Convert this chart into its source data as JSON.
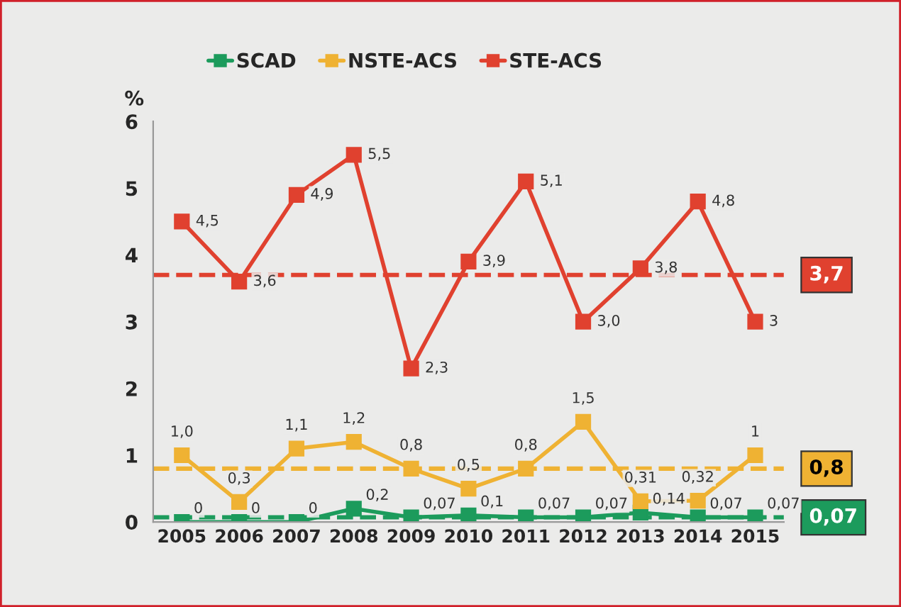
{
  "chart_data": {
    "type": "line",
    "ylabel": "%",
    "categories": [
      "2005",
      "2006",
      "2007",
      "2008",
      "2009",
      "2010",
      "2011",
      "2012",
      "2013",
      "2014",
      "2015"
    ],
    "series": [
      {
        "name": "SCAD",
        "color": "#1c9b5c",
        "values": [
          0,
          0,
          0,
          0.2,
          0.07,
          0.1,
          0.07,
          0.07,
          0.14,
          0.07,
          0.07
        ],
        "value_labels": [
          "0",
          "0",
          "0",
          "0,2",
          "0,07",
          "0,1",
          "0,07",
          "0,07",
          "0,14",
          "0,07",
          "0,07"
        ]
      },
      {
        "name": "NSTE-ACS",
        "color": "#efb233",
        "values": [
          1.0,
          0.3,
          1.1,
          1.2,
          0.8,
          0.5,
          0.8,
          1.5,
          0.31,
          0.32,
          1
        ],
        "value_labels": [
          "1,0",
          "0,3",
          "1,1",
          "1,2",
          "0,8",
          "0,5",
          "0,8",
          "1,5",
          "0,31",
          "0,32",
          "1"
        ]
      },
      {
        "name": "STE-ACS",
        "color": "#e0412f",
        "values": [
          4.5,
          3.6,
          4.9,
          5.5,
          2.3,
          3.9,
          5.1,
          3.0,
          3.8,
          4.8,
          3
        ],
        "value_labels": [
          "4,5",
          "3,6",
          "4,9",
          "5,5",
          "2,3",
          "3,9",
          "5,1",
          "3,0",
          "3,8",
          "4,8",
          "3"
        ]
      }
    ],
    "ref_lines": [
      {
        "axis": "y",
        "value": 3.7,
        "label": "3,7",
        "color": "#e0412f",
        "line_style": "dashed"
      },
      {
        "axis": "y",
        "value": 0.8,
        "label": "0,8",
        "color": "#efb233",
        "line_style": "dashed"
      },
      {
        "axis": "y",
        "value": 0.07,
        "label": "0,07",
        "color": "#1c9b5c",
        "line_style": "dashed"
      }
    ],
    "ylim": [
      0,
      6
    ],
    "yticks": [
      0,
      1,
      2,
      3,
      4,
      5,
      6
    ],
    "grid": false,
    "legend": "top",
    "marker": "square",
    "line_style": "solid"
  }
}
